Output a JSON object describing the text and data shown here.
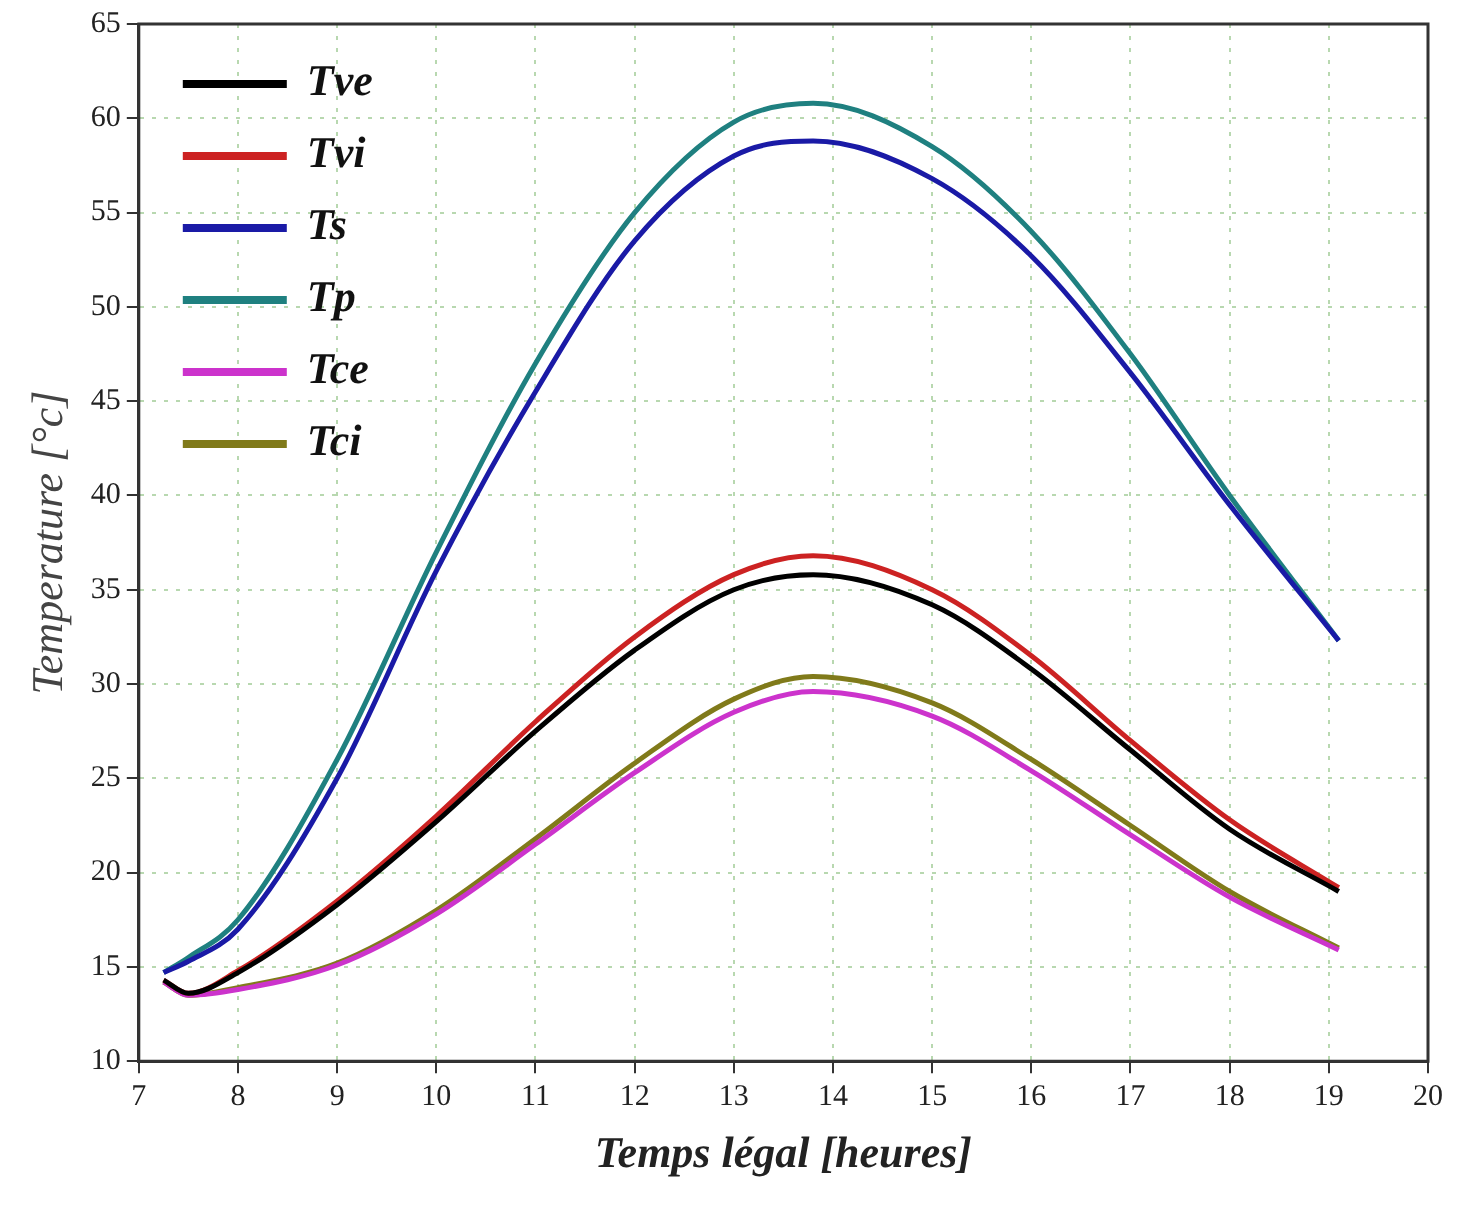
{
  "chart_data": {
    "type": "line",
    "xlabel": "Temps légal [heures]",
    "ylabel": "Temperature [°c]",
    "x": [
      7.25,
      7.5,
      8,
      9,
      10,
      11,
      12,
      13,
      13.8,
      15,
      16,
      17,
      18,
      19.1
    ],
    "xlim": [
      7,
      20
    ],
    "xticks": [
      7,
      8,
      9,
      10,
      11,
      12,
      13,
      14,
      15,
      16,
      17,
      18,
      19,
      20
    ],
    "ylim": [
      10,
      65
    ],
    "yticks": [
      10,
      15,
      20,
      25,
      30,
      35,
      40,
      45,
      50,
      55,
      60,
      65
    ],
    "grid": true,
    "legend": "top left",
    "marker": "none",
    "line_style": "solid",
    "series": [
      {
        "name": "Tve",
        "color": "#000000",
        "values": [
          14.3,
          13.6,
          14.7,
          18.3,
          22.7,
          27.5,
          31.8,
          35,
          35.8,
          34.2,
          30.8,
          26.5,
          22.3,
          19
        ]
      },
      {
        "name": "Tvi",
        "color": "#cc2222",
        "values": [
          14.3,
          13.6,
          14.8,
          18.5,
          23,
          28,
          32.5,
          35.8,
          36.8,
          35,
          31.5,
          27,
          22.8,
          19.2
        ]
      },
      {
        "name": "Ts",
        "color": "#1a1aa6",
        "values": [
          14.7,
          15.3,
          17,
          25,
          36,
          45.5,
          53.5,
          58,
          58.8,
          56.8,
          52.7,
          46.5,
          39.5,
          32.3
        ]
      },
      {
        "name": "Tp",
        "color": "#1f8080",
        "values": [
          14.7,
          15.5,
          17.5,
          26,
          37,
          47,
          55,
          59.8,
          60.8,
          58.5,
          54,
          47.5,
          40,
          32.3
        ]
      },
      {
        "name": "Tce",
        "color": "#cc33cc",
        "values": [
          14.2,
          13.5,
          13.8,
          15.1,
          17.8,
          21.5,
          25.3,
          28.5,
          29.6,
          28.3,
          25.4,
          22,
          18.7,
          15.9
        ]
      },
      {
        "name": "Tci",
        "color": "#807a1a",
        "values": [
          14.2,
          13.5,
          13.9,
          15.2,
          18,
          21.8,
          25.8,
          29.2,
          30.4,
          29,
          26,
          22.5,
          19,
          16
        ]
      }
    ]
  }
}
